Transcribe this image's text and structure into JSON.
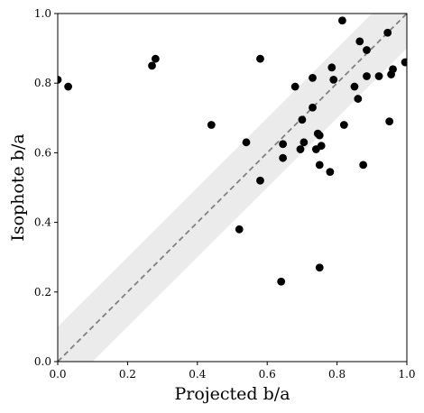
{
  "chart_data": {
    "type": "scatter",
    "title": "",
    "xlabel": "Projected b/a",
    "ylabel": "Isophote b/a",
    "xlim": [
      0,
      1
    ],
    "ylim": [
      0,
      1
    ],
    "xticks": [
      "0.0",
      "0.2",
      "0.4",
      "0.6",
      "0.8",
      "1.0"
    ],
    "yticks": [
      "0.0",
      "0.2",
      "0.4",
      "0.6",
      "0.8",
      "1.0"
    ],
    "grid": false,
    "legend": "none",
    "reference_line": {
      "slope": 1,
      "intercept": 0,
      "style": "dashed",
      "color": "#808080"
    },
    "band": {
      "half_width": 0.1,
      "color": "#ebebeb"
    },
    "marker_color": "#000000",
    "points": [
      {
        "x": 0.0,
        "y": 0.81
      },
      {
        "x": 0.03,
        "y": 0.79
      },
      {
        "x": 0.27,
        "y": 0.85
      },
      {
        "x": 0.28,
        "y": 0.87
      },
      {
        "x": 0.44,
        "y": 0.68
      },
      {
        "x": 0.52,
        "y": 0.38
      },
      {
        "x": 0.54,
        "y": 0.63
      },
      {
        "x": 0.58,
        "y": 0.52
      },
      {
        "x": 0.58,
        "y": 0.87
      },
      {
        "x": 0.64,
        "y": 0.23
      },
      {
        "x": 0.645,
        "y": 0.585
      },
      {
        "x": 0.645,
        "y": 0.625
      },
      {
        "x": 0.68,
        "y": 0.79
      },
      {
        "x": 0.695,
        "y": 0.61
      },
      {
        "x": 0.7,
        "y": 0.695
      },
      {
        "x": 0.705,
        "y": 0.63
      },
      {
        "x": 0.73,
        "y": 0.73
      },
      {
        "x": 0.73,
        "y": 0.815
      },
      {
        "x": 0.74,
        "y": 0.61
      },
      {
        "x": 0.745,
        "y": 0.655
      },
      {
        "x": 0.75,
        "y": 0.27
      },
      {
        "x": 0.75,
        "y": 0.65
      },
      {
        "x": 0.75,
        "y": 0.565
      },
      {
        "x": 0.755,
        "y": 0.62
      },
      {
        "x": 0.78,
        "y": 0.545
      },
      {
        "x": 0.785,
        "y": 0.845
      },
      {
        "x": 0.79,
        "y": 0.81
      },
      {
        "x": 0.815,
        "y": 0.98
      },
      {
        "x": 0.82,
        "y": 0.68
      },
      {
        "x": 0.85,
        "y": 0.79
      },
      {
        "x": 0.86,
        "y": 0.755
      },
      {
        "x": 0.865,
        "y": 0.92
      },
      {
        "x": 0.875,
        "y": 0.565
      },
      {
        "x": 0.885,
        "y": 0.82
      },
      {
        "x": 0.885,
        "y": 0.895
      },
      {
        "x": 0.92,
        "y": 0.82
      },
      {
        "x": 0.945,
        "y": 0.945
      },
      {
        "x": 0.95,
        "y": 0.69
      },
      {
        "x": 0.955,
        "y": 0.825
      },
      {
        "x": 0.96,
        "y": 0.84
      },
      {
        "x": 0.995,
        "y": 0.86
      }
    ]
  }
}
